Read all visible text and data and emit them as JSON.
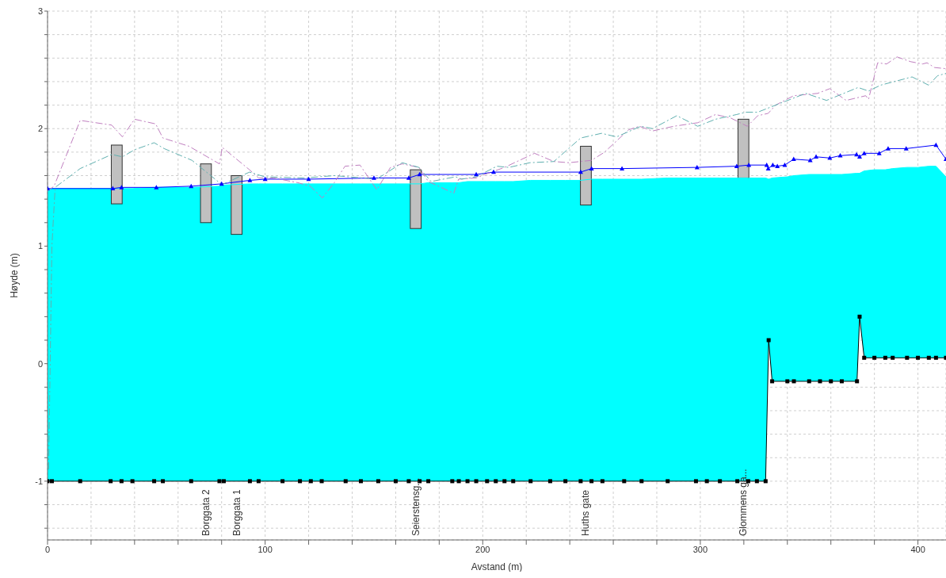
{
  "chart_data": {
    "type": "line",
    "xlabel": "Avstand (m)",
    "ylabel": "Høyde (m)",
    "xlim": [
      0,
      412.9
    ],
    "ylim": [
      -1.5,
      3
    ],
    "xticks": [
      0,
      {
        "value": 20,
        "label": null
      },
      {
        "value": 40,
        "label": null
      },
      {
        "value": 60,
        "label": null
      },
      {
        "value": 80,
        "label": null
      },
      100,
      {
        "value": 120,
        "label": null
      },
      {
        "value": 140,
        "label": null
      },
      {
        "value": 160,
        "label": null
      },
      {
        "value": 180,
        "label": null
      },
      200,
      {
        "value": 220,
        "label": null
      },
      {
        "value": 240,
        "label": null
      },
      {
        "value": 260,
        "label": null
      },
      {
        "value": 280,
        "label": null
      },
      300,
      {
        "value": 320,
        "label": null
      },
      {
        "value": 340,
        "label": null
      },
      {
        "value": 360,
        "label": null
      },
      {
        "value": 380,
        "label": null
      },
      400
    ],
    "yticks": [
      {
        "value": -1.4,
        "label": null
      },
      {
        "value": -1.2,
        "label": null
      },
      -1,
      {
        "value": -0.8,
        "label": null
      },
      {
        "value": -0.6,
        "label": null
      },
      {
        "value": -0.4,
        "label": null
      },
      {
        "value": -0.2,
        "label": null
      },
      0,
      {
        "value": 0.2,
        "label": null
      },
      {
        "value": 0.4,
        "label": null
      },
      {
        "value": 0.6,
        "label": null
      },
      {
        "value": 0.8,
        "label": null
      },
      1,
      {
        "value": 1.2,
        "label": null
      },
      {
        "value": 1.4,
        "label": null
      },
      {
        "value": 1.6,
        "label": null
      },
      {
        "value": 1.8,
        "label": null
      },
      2,
      {
        "value": 2.2,
        "label": null
      },
      {
        "value": 2.4,
        "label": null
      },
      {
        "value": 2.6,
        "label": null
      },
      {
        "value": 2.8,
        "label": null
      },
      3
    ],
    "grid": true,
    "x": [
      0,
      2,
      15,
      29,
      34,
      39,
      49,
      53,
      66,
      79,
      81,
      93,
      97,
      108,
      116,
      121,
      126,
      137,
      144,
      152,
      160,
      166,
      171,
      175,
      186,
      189,
      193,
      197,
      202,
      206,
      210,
      214,
      222,
      231,
      238,
      245,
      250,
      255,
      265,
      273,
      285,
      298,
      303,
      309,
      317,
      322,
      326,
      330,
      331.4,
      333,
      340,
      343,
      350,
      355,
      360,
      365,
      372,
      373.2,
      375.3,
      380,
      385,
      388.4,
      395,
      400,
      405,
      408.3,
      412.9
    ],
    "series": [
      {
        "color": "#00ffff",
        "marker": "none",
        "values": [
          1.49,
          1.49,
          1.49,
          1.49,
          1.49,
          1.49,
          1.5,
          1.5,
          1.5,
          1.51,
          1.52,
          1.53,
          1.53,
          1.53,
          1.53,
          1.53,
          1.53,
          1.53,
          1.53,
          1.53,
          1.53,
          1.53,
          1.53,
          1.54,
          1.54,
          1.54,
          1.55,
          1.55,
          1.55,
          1.55,
          1.55,
          1.55,
          1.56,
          1.56,
          1.56,
          1.56,
          1.57,
          1.57,
          1.57,
          1.57,
          1.58,
          1.58,
          1.58,
          1.58,
          1.58,
          1.58,
          1.58,
          1.58,
          1.57,
          1.58,
          1.59,
          1.6,
          1.61,
          1.61,
          1.61,
          1.61,
          1.62,
          1.62,
          1.64,
          1.65,
          1.65,
          1.66,
          1.67,
          1.67,
          1.68,
          1.68,
          1.59
        ],
        "upper": [
          1.49,
          1.49,
          1.49,
          1.49,
          1.49,
          1.49,
          1.5,
          1.5,
          1.5,
          1.51,
          1.52,
          1.53,
          1.53,
          1.53,
          1.53,
          1.53,
          1.53,
          1.53,
          1.53,
          1.53,
          1.53,
          1.53,
          1.53,
          1.54,
          1.54,
          1.54,
          1.55,
          1.55,
          1.55,
          1.55,
          1.55,
          1.55,
          1.56,
          1.56,
          1.56,
          1.56,
          1.57,
          1.57,
          1.57,
          1.57,
          1.58,
          1.58,
          1.58,
          1.58,
          1.58,
          1.58,
          1.58,
          1.58,
          1.57,
          1.58,
          1.59,
          1.6,
          1.61,
          1.61,
          1.61,
          1.61,
          1.62,
          1.62,
          1.64,
          1.65,
          1.65,
          1.66,
          1.67,
          1.67,
          1.68,
          1.68,
          1.59
        ],
        "lower": [
          -1,
          -1,
          -1,
          -1,
          -1,
          -1,
          -1,
          -1,
          -1,
          -1,
          -1,
          -1,
          -1,
          -1,
          -1,
          -1,
          -1,
          -1,
          -1,
          -1,
          -1,
          -1,
          -1,
          -1,
          -1,
          -1,
          -1,
          -1,
          -1,
          -1,
          -1,
          -1,
          -1,
          -1,
          -1,
          -1,
          -1,
          -1,
          -1,
          -1,
          -1,
          -1,
          -1,
          -1,
          -1,
          -1,
          -1,
          -1,
          0.2,
          -0.15,
          -0.15,
          -0.15,
          -0.15,
          -0.15,
          -0.15,
          -0.15,
          -0.15,
          0.4,
          0.05,
          0.05,
          0.05,
          0.05,
          0.05,
          0.05,
          0.05,
          0.05,
          0.05
        ]
      },
      {
        "type": "bar",
        "color": "#c0c0c0",
        "x": [
          31.8,
          72.8,
          86.9,
          169.2,
          247.4,
          319.8
        ],
        "base": [
          1.36,
          1.2,
          1.1,
          1.15,
          1.35,
          1.58
        ],
        "values": [
          0.5,
          0.5,
          0.5,
          0.5,
          0.5,
          0.5
        ]
      },
      {
        "color": "#000000",
        "marker": "square",
        "line_style": "solid",
        "values": [
          -1,
          -1,
          -1,
          -1,
          -1,
          -1,
          -1,
          -1,
          -1,
          -1,
          -1,
          -1,
          -1,
          -1,
          -1,
          -1,
          -1,
          -1,
          -1,
          -1,
          -1,
          -1,
          -1,
          -1,
          -1,
          -1,
          -1,
          -1,
          -1,
          -1,
          -1,
          -1,
          -1,
          -1,
          -1,
          -1,
          -1,
          -1,
          -1,
          -1,
          -1,
          -1,
          -1,
          -1,
          -1,
          -1,
          -1,
          -1,
          0.2,
          -0.15,
          -0.15,
          -0.15,
          -0.15,
          -0.15,
          -0.15,
          -0.15,
          -0.15,
          0.4,
          0.05,
          0.05,
          0.05,
          0.05,
          0.05,
          0.05,
          0.05,
          0.05,
          0.05
        ]
      },
      {
        "color": "#0000ff",
        "marker": "triangle",
        "line_style": "solid",
        "x": [
          0,
          30,
          34,
          50,
          66,
          80,
          93,
          100,
          120,
          150,
          166,
          171,
          197,
          205,
          245,
          250,
          264,
          298.5,
          316.7,
          322.3,
          330.5,
          331.2,
          333.3,
          335.4,
          338.8,
          342.9,
          350.5,
          353.2,
          359.5,
          364.3,
          371.8,
          373.2,
          375.3,
          382.2,
          386.3,
          394.6,
          408.3,
          412.9
        ],
        "values": [
          1.49,
          1.49,
          1.5,
          1.5,
          1.51,
          1.53,
          1.56,
          1.57,
          1.57,
          1.58,
          1.58,
          1.61,
          1.61,
          1.63,
          1.63,
          1.66,
          1.66,
          1.67,
          1.68,
          1.69,
          1.69,
          1.66,
          1.69,
          1.68,
          1.69,
          1.74,
          1.73,
          1.76,
          1.75,
          1.77,
          1.78,
          1.76,
          1.79,
          1.79,
          1.83,
          1.83,
          1.86,
          1.74
        ]
      },
      {
        "color": "#c080c0",
        "marker": "none",
        "line_style": "dashed",
        "x": [
          0,
          3,
          15,
          29.5,
          34.4,
          40,
          49.7,
          53,
          65,
          79,
          80.3,
          92.8,
          97,
          104,
          115,
          120.7,
          126.3,
          131.8,
          136.7,
          143.6,
          151.3,
          157.6,
          163,
          170.7,
          175,
          186.7,
          188.9,
          197,
          201,
          210,
          223.8,
          232.7,
          239.6,
          250,
          256,
          267,
          272,
          278,
          287.8,
          298.8,
          307,
          314,
          321.6,
          326.4,
          331.2,
          334.6,
          342.9,
          353.9,
          359.5,
          367,
          376,
          377.3,
          381.5,
          385.6,
          390.4,
          396.6,
          402.1,
          404.2,
          407.6,
          412.9
        ],
        "values": [
          1.47,
          1.51,
          2.07,
          2.03,
          1.93,
          2.08,
          2.04,
          1.92,
          1.85,
          1.7,
          1.84,
          1.65,
          1.58,
          1.58,
          1.54,
          1.51,
          1.41,
          1.54,
          1.68,
          1.69,
          1.48,
          1.67,
          1.7,
          1.67,
          1.55,
          1.45,
          1.57,
          1.58,
          1.61,
          1.67,
          1.79,
          1.72,
          1.71,
          1.73,
          1.8,
          1.99,
          2.02,
          1.98,
          2.02,
          2.05,
          2.12,
          2.09,
          2.02,
          2.11,
          2.13,
          2.2,
          2.28,
          2.3,
          2.34,
          2.24,
          2.28,
          2.25,
          2.56,
          2.55,
          2.61,
          2.57,
          2.55,
          2.56,
          2.52,
          2.51
        ]
      },
      {
        "color": "#60b0b0",
        "marker": "none",
        "line_style": "dashed",
        "x": [
          0.5,
          2,
          3.5,
          15,
          29.5,
          34.4,
          40,
          49,
          53.6,
          66.4,
          79,
          81,
          92.8,
          99.8,
          117.9,
          131.8,
          151.3,
          163,
          170.7,
          176.3,
          187.5,
          190.3,
          197,
          206.5,
          212,
          221.7,
          232.7,
          245,
          254.6,
          261.5,
          272.7,
          278,
          289.2,
          298.8,
          307,
          316.7,
          320.9,
          326.4,
          336,
          348.4,
          358,
          372.5,
          377.3,
          382.9,
          397.3,
          404.9,
          409,
          412.9
        ],
        "values": [
          -0.9,
          1,
          1.5,
          1.66,
          1.78,
          1.76,
          1.82,
          1.88,
          1.83,
          1.73,
          1.54,
          1.53,
          1.63,
          1.59,
          1.58,
          1.6,
          1.57,
          1.71,
          1.67,
          1.55,
          1.59,
          1.57,
          1.59,
          1.68,
          1.67,
          1.71,
          1.72,
          1.92,
          1.96,
          1.93,
          2.02,
          2,
          2.11,
          2.02,
          2.08,
          2.12,
          2.14,
          2.14,
          2.21,
          2.3,
          2.24,
          2.35,
          2.32,
          2.37,
          2.44,
          2.37,
          2.45,
          2.47
        ]
      }
    ],
    "annotations": [
      "Borggata 2",
      "Borggata 1",
      "Seierstensg...",
      "Huths gate",
      "Glommens ga..."
    ]
  }
}
